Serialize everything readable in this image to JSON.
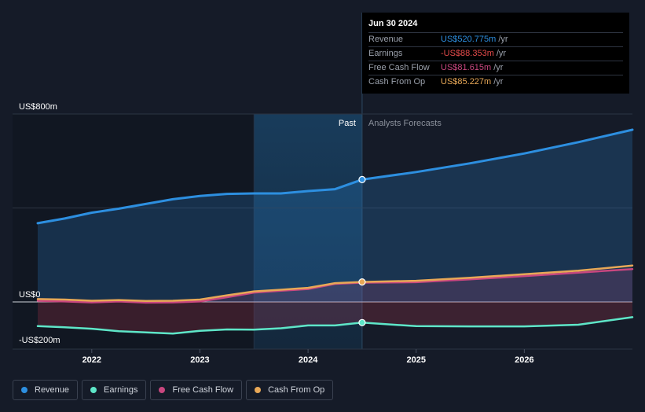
{
  "chart_data": {
    "type": "line",
    "y_axis": {
      "range": [
        -200,
        800
      ],
      "labels": [
        {
          "value": 800,
          "text": "US$800m"
        },
        {
          "value": 0,
          "text": "US$0"
        },
        {
          "value": -200,
          "text": "-US$200m"
        }
      ]
    },
    "x_axis": {
      "range": [
        2021.5,
        2027.0
      ],
      "ticks": [
        {
          "value": 2022,
          "text": "2022"
        },
        {
          "value": 2023,
          "text": "2023"
        },
        {
          "value": 2024,
          "text": "2024"
        },
        {
          "value": 2025,
          "text": "2025"
        },
        {
          "value": 2026,
          "text": "2026"
        }
      ]
    },
    "past_start": 2023.5,
    "divider": 2024.5,
    "region_labels": {
      "past": "Past",
      "forecast": "Analysts Forecasts"
    },
    "series": [
      {
        "name": "Revenue",
        "key": "revenue",
        "color": "#2d8fe0",
        "fill": true,
        "points": [
          [
            2021.5,
            335
          ],
          [
            2021.75,
            355
          ],
          [
            2022.0,
            380
          ],
          [
            2022.25,
            397
          ],
          [
            2022.5,
            417
          ],
          [
            2022.75,
            437
          ],
          [
            2023.0,
            451
          ],
          [
            2023.25,
            460
          ],
          [
            2023.5,
            462
          ],
          [
            2023.75,
            462
          ],
          [
            2024.0,
            472
          ],
          [
            2024.25,
            480
          ],
          [
            2024.5,
            521
          ],
          [
            2025.0,
            553
          ],
          [
            2025.5,
            590
          ],
          [
            2026.0,
            632
          ],
          [
            2026.5,
            680
          ],
          [
            2027.0,
            733
          ]
        ]
      },
      {
        "name": "Earnings",
        "key": "earnings",
        "color": "#5ee6c8",
        "fill": true,
        "points": [
          [
            2021.5,
            -103
          ],
          [
            2021.75,
            -108
          ],
          [
            2022.0,
            -114
          ],
          [
            2022.25,
            -125
          ],
          [
            2022.5,
            -130
          ],
          [
            2022.75,
            -135
          ],
          [
            2023.0,
            -123
          ],
          [
            2023.25,
            -117
          ],
          [
            2023.5,
            -118
          ],
          [
            2023.75,
            -112
          ],
          [
            2024.0,
            -100
          ],
          [
            2024.25,
            -100
          ],
          [
            2024.5,
            -88
          ],
          [
            2025.0,
            -103
          ],
          [
            2025.5,
            -104
          ],
          [
            2026.0,
            -104
          ],
          [
            2026.5,
            -97
          ],
          [
            2027.0,
            -65
          ]
        ]
      },
      {
        "name": "Free Cash Flow",
        "key": "fcf",
        "color": "#c9477f",
        "fill": true,
        "points": [
          [
            2021.5,
            5
          ],
          [
            2021.75,
            2
          ],
          [
            2022.0,
            -2
          ],
          [
            2022.25,
            2
          ],
          [
            2022.5,
            -3
          ],
          [
            2022.75,
            -2
          ],
          [
            2023.0,
            2
          ],
          [
            2023.25,
            20
          ],
          [
            2023.5,
            40
          ],
          [
            2023.75,
            48
          ],
          [
            2024.0,
            55
          ],
          [
            2024.25,
            77
          ],
          [
            2024.5,
            82
          ],
          [
            2025.0,
            84
          ],
          [
            2025.5,
            96
          ],
          [
            2026.0,
            110
          ],
          [
            2026.5,
            125
          ],
          [
            2027.0,
            140
          ]
        ]
      },
      {
        "name": "Cash From Op",
        "key": "cfo",
        "color": "#e8a857",
        "fill": false,
        "points": [
          [
            2021.5,
            12
          ],
          [
            2021.75,
            10
          ],
          [
            2022.0,
            5
          ],
          [
            2022.25,
            8
          ],
          [
            2022.5,
            4
          ],
          [
            2022.75,
            5
          ],
          [
            2023.0,
            10
          ],
          [
            2023.25,
            28
          ],
          [
            2023.5,
            45
          ],
          [
            2023.75,
            52
          ],
          [
            2024.0,
            60
          ],
          [
            2024.25,
            80
          ],
          [
            2024.5,
            85
          ],
          [
            2025.0,
            90
          ],
          [
            2025.5,
            103
          ],
          [
            2026.0,
            118
          ],
          [
            2026.5,
            133
          ],
          [
            2027.0,
            155
          ]
        ]
      }
    ],
    "markers": [
      {
        "series": "revenue",
        "x": 2024.5,
        "y": 521
      },
      {
        "series": "earnings",
        "x": 2024.5,
        "y": -88
      },
      {
        "series": "cfo",
        "x": 2024.5,
        "y": 85
      }
    ]
  },
  "tooltip": {
    "date": "Jun 30 2024",
    "rows": [
      {
        "label": "Revenue",
        "value": "US$520.775m",
        "unit": "/yr",
        "color": "#2d8fe0"
      },
      {
        "label": "Earnings",
        "value": "-US$88.353m",
        "unit": "/yr",
        "color": "#e64b4b"
      },
      {
        "label": "Free Cash Flow",
        "value": "US$81.615m",
        "unit": "/yr",
        "color": "#c9477f"
      },
      {
        "label": "Cash From Op",
        "value": "US$85.227m",
        "unit": "/yr",
        "color": "#e8a857"
      }
    ]
  },
  "legend": [
    {
      "label": "Revenue",
      "color": "#2d8fe0"
    },
    {
      "label": "Earnings",
      "color": "#5ee6c8"
    },
    {
      "label": "Free Cash Flow",
      "color": "#c9477f"
    },
    {
      "label": "Cash From Op",
      "color": "#e8a857"
    }
  ]
}
